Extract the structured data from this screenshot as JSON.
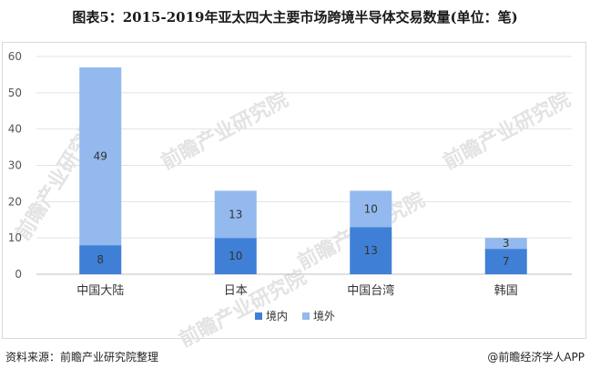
{
  "title": "图表5：2015-2019年亚太四大主要市场跨境半导体交易数量(单位：笔)",
  "chart_data": {
    "type": "bar",
    "stacked": true,
    "categories": [
      "中国大陆",
      "日本",
      "中国台湾",
      "韩国"
    ],
    "series": [
      {
        "name": "境内",
        "values": [
          8,
          10,
          13,
          7
        ],
        "color": "#3f7fd6"
      },
      {
        "name": "境外",
        "values": [
          49,
          13,
          10,
          3
        ],
        "color": "#93b9ee"
      }
    ],
    "yticks": [
      "0",
      "10",
      "20",
      "30",
      "40",
      "50",
      "60"
    ],
    "ylim": [
      0,
      60
    ],
    "grid": true,
    "legend": "bottom"
  },
  "watermark": "前瞻产业研究院",
  "footer": {
    "source": "资料来源：前瞻产业研究院整理",
    "brand": "@前瞻经济学人APP"
  }
}
